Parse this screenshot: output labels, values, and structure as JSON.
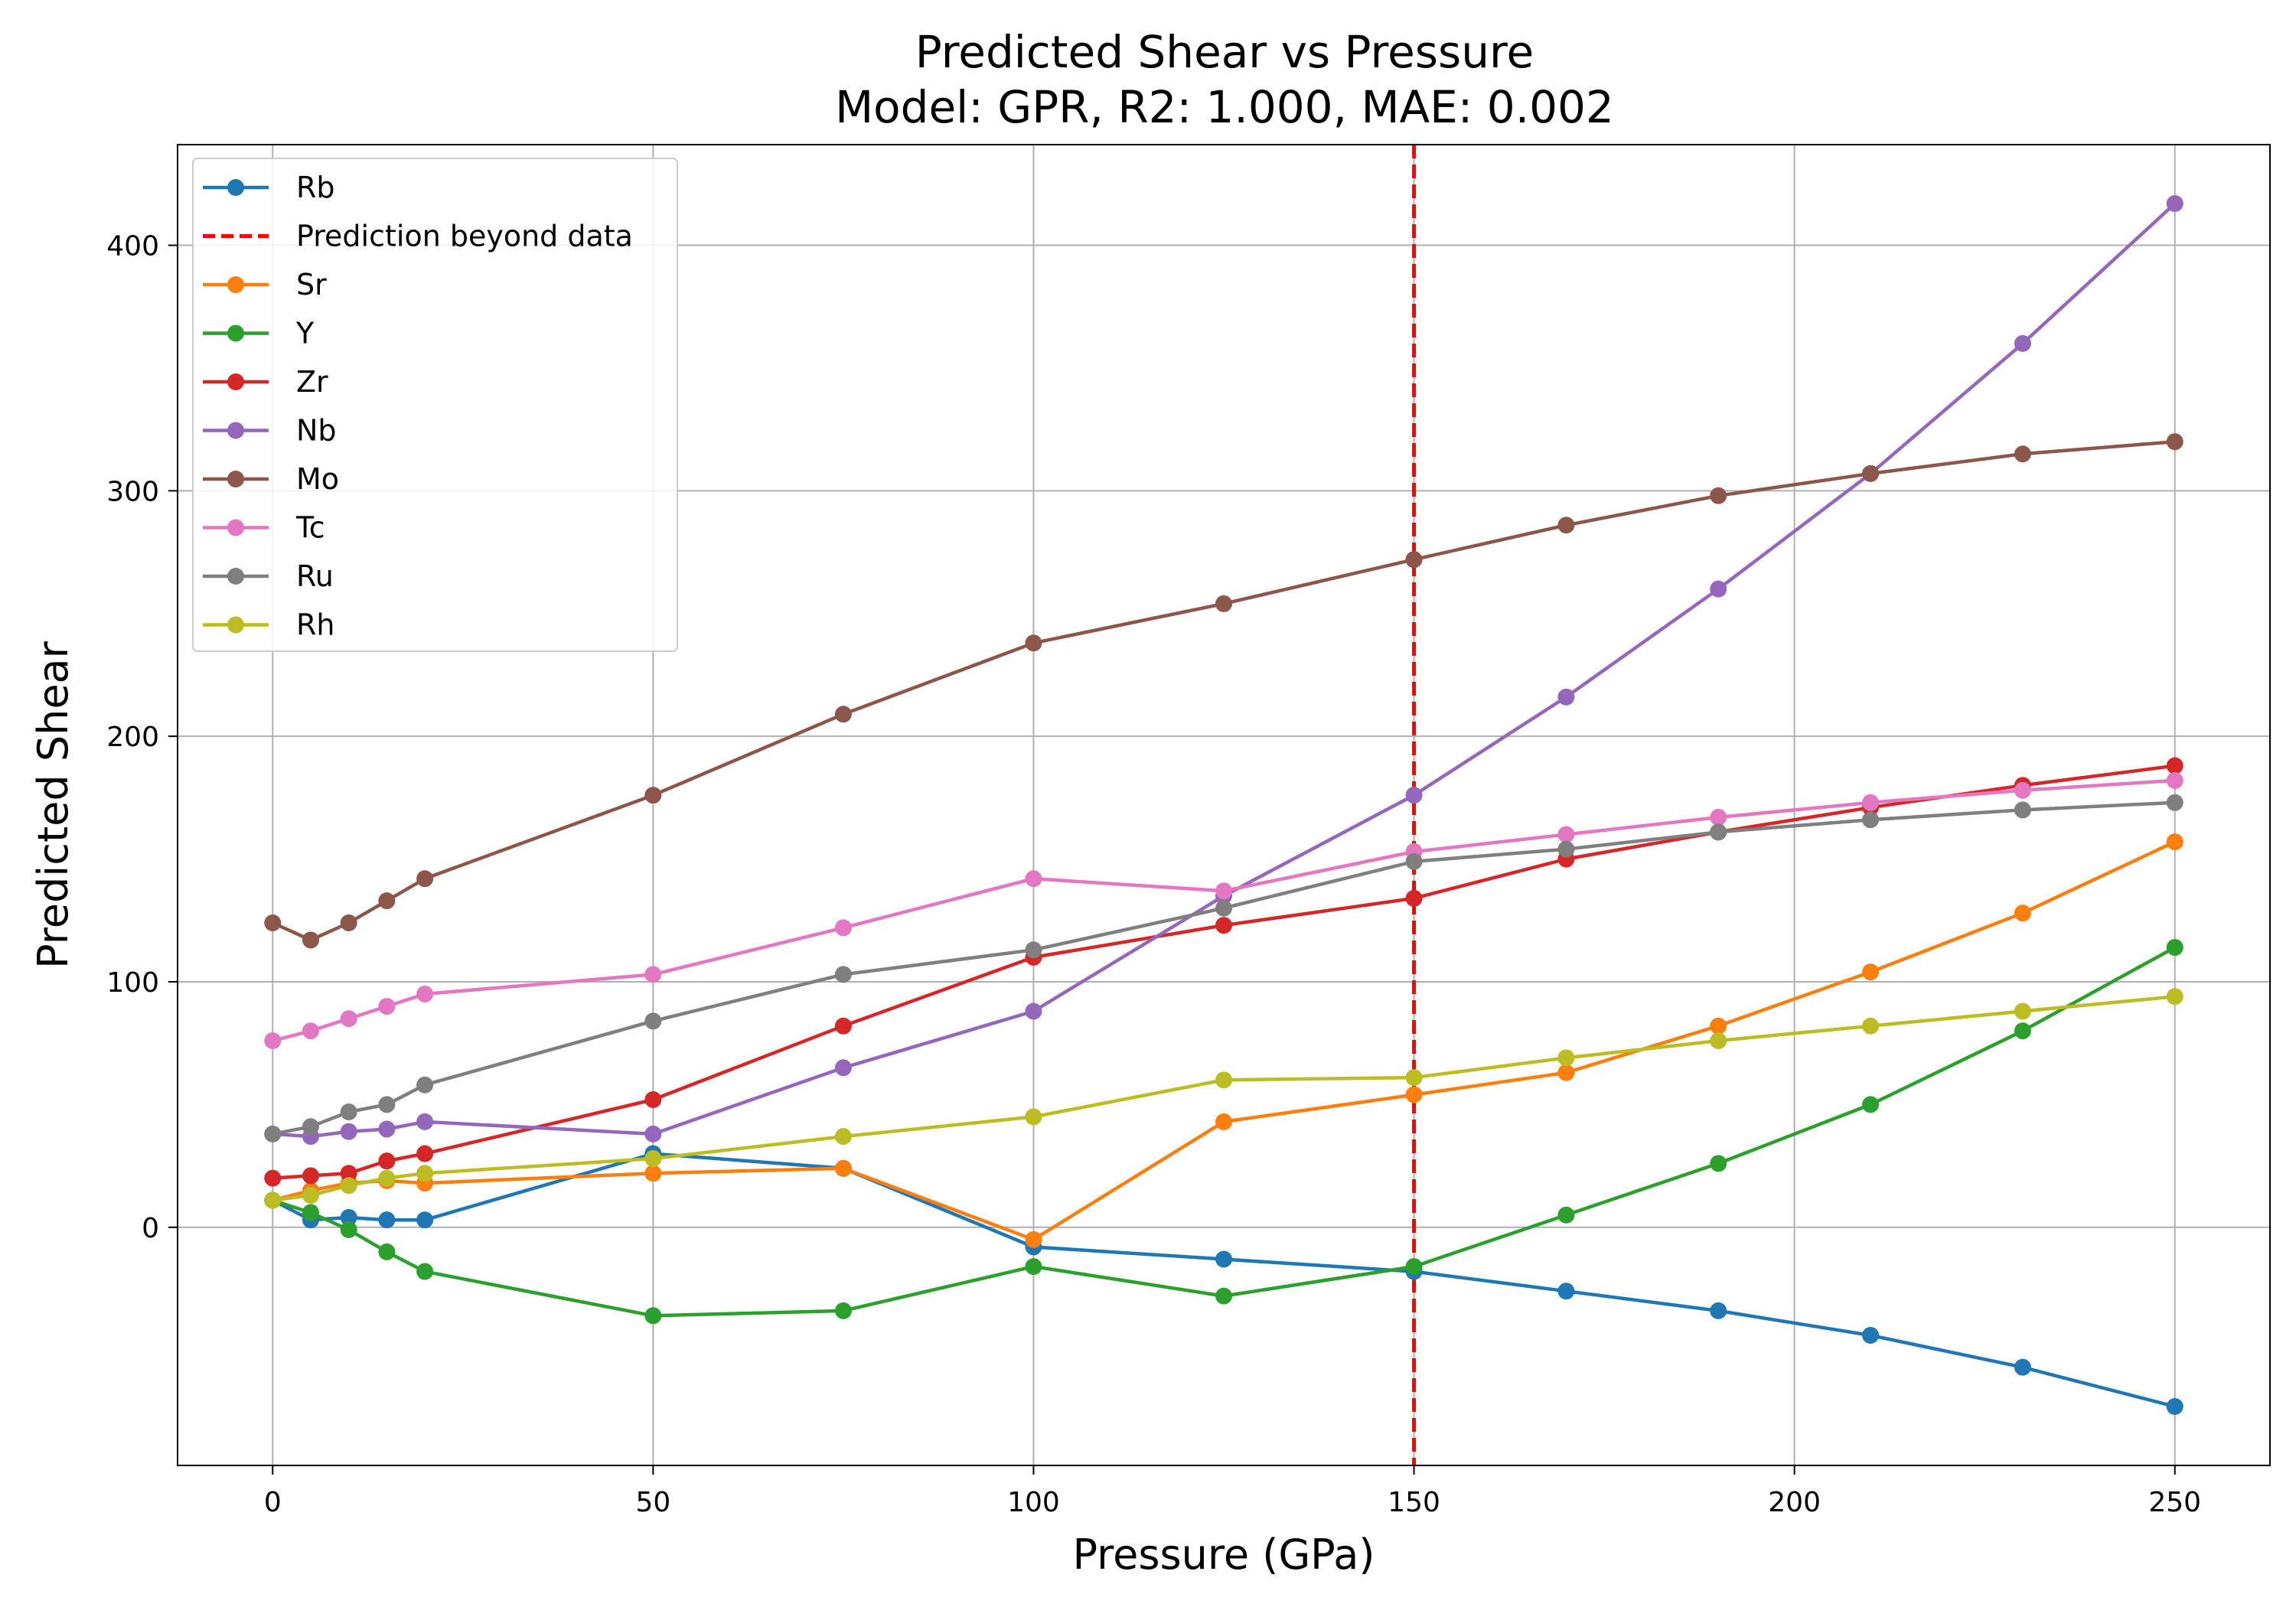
{
  "chart_data": {
    "type": "line",
    "title": "Predicted Shear vs Pressure",
    "subtitle": "Model: GPR, R2: 1.000, MAE: 0.002",
    "xlabel": "Pressure (GPa)",
    "ylabel": "Predicted Shear",
    "xlim": [
      -12.5,
      262.5
    ],
    "ylim": [
      -97,
      441
    ],
    "xticks": [
      0,
      50,
      100,
      150,
      200,
      250
    ],
    "yticks": [
      0,
      100,
      200,
      300,
      400
    ],
    "grid": true,
    "legend_position": "upper-left",
    "x": [
      0,
      5,
      10,
      15,
      20,
      50,
      75,
      100,
      125,
      150,
      170,
      190,
      210,
      230,
      250
    ],
    "vline": {
      "x": 150,
      "label": "Prediction beyond data",
      "color": "#ff0000",
      "style": "dashed"
    },
    "series": [
      {
        "name": "Rb",
        "color": "#1f77b4",
        "values": [
          11,
          3,
          4,
          3,
          3,
          30,
          24,
          -8,
          -13,
          -18,
          -26,
          -34,
          -44,
          -57,
          -73
        ]
      },
      {
        "name": "Sr",
        "color": "#ff7f0e",
        "values": [
          11,
          15,
          18,
          19,
          18,
          22,
          24,
          -5,
          43,
          54,
          63,
          82,
          104,
          128,
          157
        ]
      },
      {
        "name": "Y",
        "color": "#2ca02c",
        "values": [
          11,
          6,
          -1,
          -10,
          -18,
          -36,
          -34,
          -16,
          -28,
          -16,
          5,
          26,
          50,
          80,
          114
        ]
      },
      {
        "name": "Zr",
        "color": "#d62728",
        "values": [
          20,
          21,
          22,
          27,
          30,
          52,
          82,
          110,
          123,
          134,
          150,
          161,
          171,
          180,
          188
        ]
      },
      {
        "name": "Nb",
        "color": "#9467bd",
        "values": [
          38,
          37,
          39,
          40,
          43,
          38,
          65,
          88,
          135,
          176,
          216,
          260,
          307,
          360,
          417
        ]
      },
      {
        "name": "Mo",
        "color": "#8c564b",
        "values": [
          124,
          117,
          124,
          133,
          142,
          176,
          209,
          238,
          254,
          272,
          286,
          298,
          307,
          315,
          320
        ]
      },
      {
        "name": "Tc",
        "color": "#e377c2",
        "values": [
          76,
          80,
          85,
          90,
          95,
          103,
          122,
          142,
          137,
          153,
          160,
          167,
          173,
          178,
          182
        ]
      },
      {
        "name": "Ru",
        "color": "#7f7f7f",
        "values": [
          38,
          41,
          47,
          50,
          58,
          84,
          103,
          113,
          130,
          149,
          154,
          161,
          166,
          170,
          173
        ]
      },
      {
        "name": "Rh",
        "color": "#bcbd22",
        "values": [
          11,
          13,
          17,
          20,
          22,
          28,
          37,
          45,
          60,
          61,
          69,
          76,
          82,
          88,
          94
        ]
      }
    ]
  }
}
